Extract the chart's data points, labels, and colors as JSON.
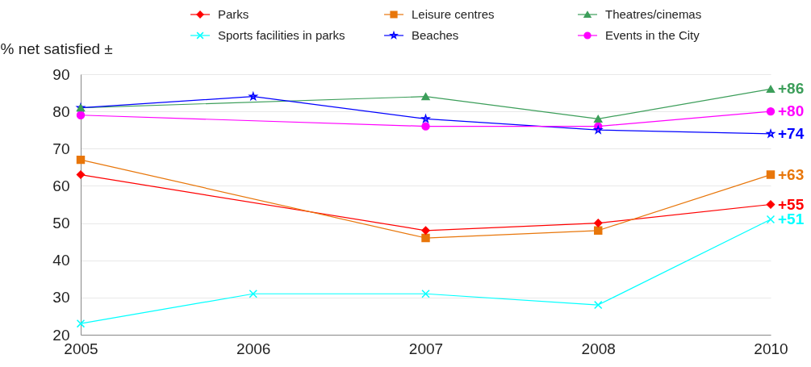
{
  "chart_data": {
    "type": "line",
    "ylabel": "% net satisfied ±",
    "categories": [
      "2005",
      "2006",
      "2007",
      "2008",
      "2010"
    ],
    "ylim": [
      20,
      90
    ],
    "yticks": [
      20,
      30,
      40,
      50,
      60,
      70,
      80,
      90
    ],
    "grid": "y",
    "legend": "top",
    "series": [
      {
        "name": "Parks",
        "color": "#ff0000",
        "marker": "diamond",
        "values": [
          63,
          null,
          48,
          50,
          55
        ],
        "value_labels": [
          null,
          null,
          null,
          null,
          "+55"
        ]
      },
      {
        "name": "Leisure centres",
        "color": "#e8760a",
        "marker": "square",
        "values": [
          67,
          null,
          46,
          48,
          63
        ],
        "value_labels": [
          null,
          null,
          null,
          null,
          "+63"
        ]
      },
      {
        "name": "Theatres/cinemas",
        "color": "#3c9e5a",
        "marker": "triangle",
        "values": [
          81,
          null,
          84,
          78,
          86
        ],
        "value_labels": [
          null,
          null,
          null,
          null,
          "+86"
        ]
      },
      {
        "name": "Sports facilities in parks",
        "color": "#00ffff",
        "marker": "cross",
        "values": [
          23,
          31,
          31,
          28,
          51
        ],
        "value_labels": [
          null,
          null,
          null,
          null,
          "+51"
        ]
      },
      {
        "name": "Beaches",
        "color": "#0000ff",
        "marker": "star",
        "values": [
          81,
          84,
          78,
          75,
          74
        ],
        "value_labels": [
          null,
          null,
          null,
          null,
          "+74"
        ]
      },
      {
        "name": "Events in the City",
        "color": "#ff00ff",
        "marker": "circle",
        "values": [
          79,
          null,
          76,
          76,
          80
        ],
        "value_labels": [
          null,
          null,
          null,
          null,
          "+80"
        ]
      }
    ]
  }
}
